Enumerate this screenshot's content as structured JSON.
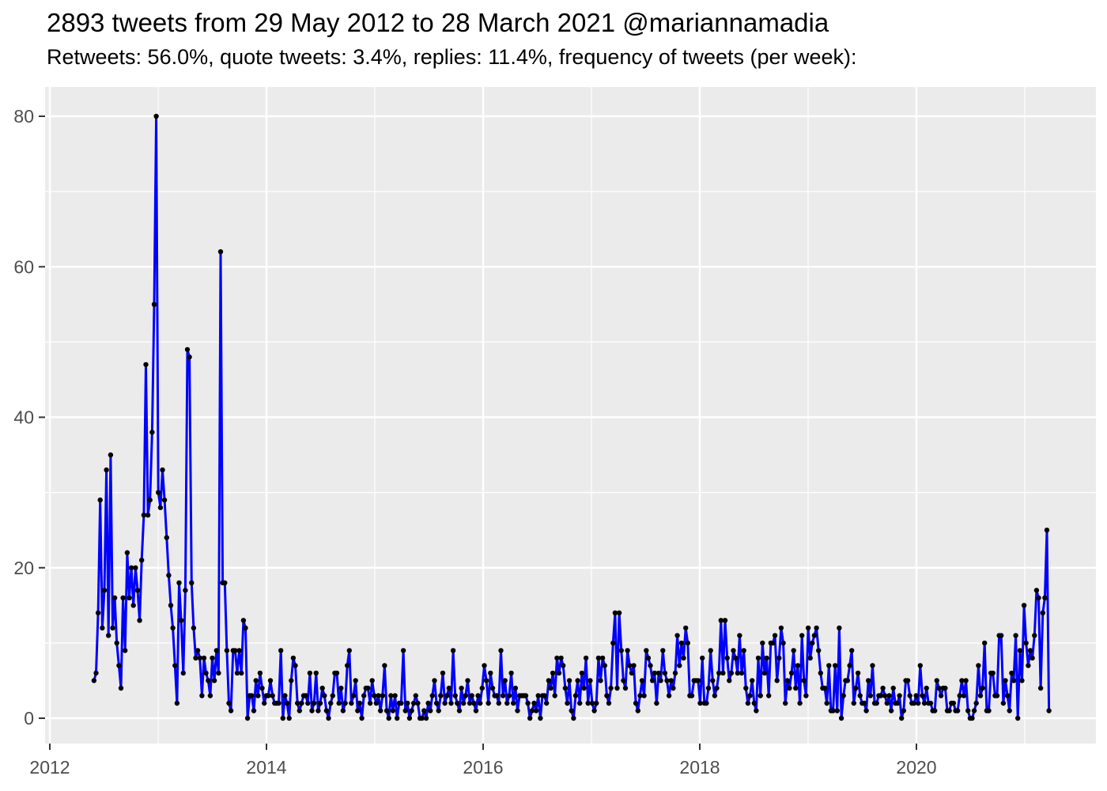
{
  "header": {
    "title": "2893 tweets from 29 May 2012 to 28 March 2021 @mariannamadia",
    "subtitle": "Retweets: 56.0%, quote tweets: 3.4%, replies: 11.4%, frequency of tweets (per week):"
  },
  "stats": {
    "total_tweets": "2893",
    "date_range": "29 May 2012 to 28 March 2021",
    "handle": "@mariannamadia",
    "retweets_pct": "56.0%",
    "quote_tweets_pct": "3.4%",
    "replies_pct": "11.4%"
  },
  "chart_data": {
    "type": "line",
    "title": "2893 tweets from 29 May 2012 to 28 March 2021 @mariannamadia",
    "subtitle": "Retweets: 56.0%, quote tweets: 3.4%, replies: 11.4%, frequency of tweets (per week):",
    "series_name": "tweets per week",
    "x_unit": "week",
    "x_start": "2012-05-29",
    "x_end": "2021-03-28",
    "xlabel": "",
    "ylabel": "",
    "x_ticks": [
      "2012",
      "2014",
      "2016",
      "2018",
      "2020"
    ],
    "x_minor_ticks": [
      2013,
      2015,
      2017,
      2019,
      2021
    ],
    "y_ticks": [
      "0",
      "20",
      "40",
      "60",
      "80"
    ],
    "y_minor_ticks": [
      10,
      30,
      50,
      70
    ],
    "ylim": [
      -4,
      84
    ],
    "xlim_years": [
      2011.96,
      2021.67
    ],
    "grid": true,
    "legend": false,
    "colors": {
      "line": "#0000FF",
      "point": "#000000",
      "panel_bg": "#EBEBEB",
      "grid": "#FFFFFF",
      "axis_text": "#4D4D4D",
      "tick_mark": "#333333",
      "title_text": "#000000"
    },
    "values": [
      5,
      6,
      14,
      29,
      12,
      17,
      33,
      11,
      35,
      12,
      16,
      10,
      7,
      4,
      16,
      9,
      22,
      16,
      20,
      15,
      20,
      17,
      13,
      21,
      27,
      47,
      27,
      29,
      38,
      55,
      80,
      30,
      28,
      33,
      29,
      24,
      19,
      15,
      12,
      7,
      2,
      18,
      13,
      6,
      17,
      49,
      48,
      18,
      12,
      8,
      9,
      8,
      3,
      8,
      6,
      5,
      3,
      8,
      5,
      9,
      6,
      62,
      18,
      18,
      9,
      2,
      1,
      9,
      9,
      6,
      9,
      6,
      13,
      12,
      0,
      3,
      3,
      1,
      5,
      3,
      6,
      4,
      2,
      3,
      3,
      5,
      3,
      2,
      2,
      2,
      9,
      0,
      3,
      2,
      0,
      5,
      8,
      7,
      2,
      1,
      2,
      3,
      3,
      2,
      6,
      1,
      2,
      6,
      1,
      2,
      4,
      3,
      1,
      0,
      2,
      3,
      6,
      6,
      2,
      4,
      1,
      2,
      7,
      9,
      2,
      3,
      5,
      1,
      2,
      0,
      3,
      4,
      4,
      2,
      5,
      3,
      2,
      3,
      1,
      3,
      7,
      1,
      0,
      3,
      1,
      3,
      0,
      2,
      2,
      9,
      1,
      2,
      0,
      1,
      2,
      3,
      2,
      0,
      0,
      1,
      0,
      2,
      1,
      3,
      5,
      2,
      1,
      3,
      6,
      2,
      3,
      4,
      2,
      9,
      3,
      2,
      1,
      4,
      2,
      3,
      5,
      2,
      3,
      2,
      1,
      3,
      2,
      4,
      7,
      5,
      2,
      6,
      4,
      3,
      3,
      2,
      9,
      3,
      5,
      2,
      3,
      6,
      2,
      4,
      1,
      3,
      3,
      3,
      3,
      2,
      0,
      1,
      2,
      1,
      3,
      0,
      3,
      3,
      2,
      5,
      4,
      6,
      3,
      8,
      6,
      8,
      7,
      4,
      2,
      5,
      1,
      0,
      3,
      5,
      2,
      6,
      4,
      8,
      2,
      5,
      2,
      1,
      2,
      8,
      5,
      8,
      7,
      3,
      2,
      4,
      10,
      14,
      4,
      14,
      9,
      5,
      4,
      9,
      7,
      6,
      7,
      2,
      1,
      3,
      5,
      3,
      9,
      8,
      7,
      5,
      6,
      2,
      6,
      5,
      9,
      6,
      5,
      3,
      5,
      4,
      6,
      11,
      7,
      10,
      8,
      12,
      10,
      3,
      3,
      5,
      5,
      5,
      2,
      8,
      2,
      2,
      4,
      9,
      5,
      3,
      4,
      6,
      13,
      6,
      13,
      8,
      5,
      6,
      9,
      8,
      6,
      11,
      6,
      9,
      4,
      2,
      3,
      5,
      2,
      1,
      8,
      3,
      10,
      6,
      8,
      3,
      10,
      10,
      11,
      5,
      8,
      12,
      10,
      2,
      5,
      4,
      6,
      9,
      4,
      7,
      2,
      11,
      5,
      3,
      12,
      8,
      10,
      11,
      12,
      9,
      6,
      4,
      4,
      2,
      7,
      1,
      1,
      7,
      1,
      12,
      0,
      3,
      5,
      5,
      7,
      9,
      2,
      4,
      6,
      3,
      2,
      2,
      1,
      5,
      3,
      7,
      2,
      2,
      3,
      3,
      4,
      3,
      2,
      3,
      1,
      4,
      2,
      2,
      3,
      0,
      1,
      5,
      5,
      3,
      2,
      2,
      3,
      2,
      7,
      3,
      2,
      4,
      2,
      2,
      1,
      1,
      5,
      4,
      3,
      4,
      4,
      1,
      1,
      2,
      2,
      1,
      1,
      3,
      5,
      3,
      5,
      1,
      0,
      0,
      1,
      2,
      7,
      3,
      4,
      10,
      1,
      1,
      6,
      6,
      3,
      3,
      11,
      11,
      2,
      5,
      3,
      1,
      6,
      5,
      11,
      0,
      9,
      5,
      15,
      10,
      7,
      9,
      8,
      11,
      17,
      16,
      4,
      14,
      16,
      25,
      1
    ]
  }
}
